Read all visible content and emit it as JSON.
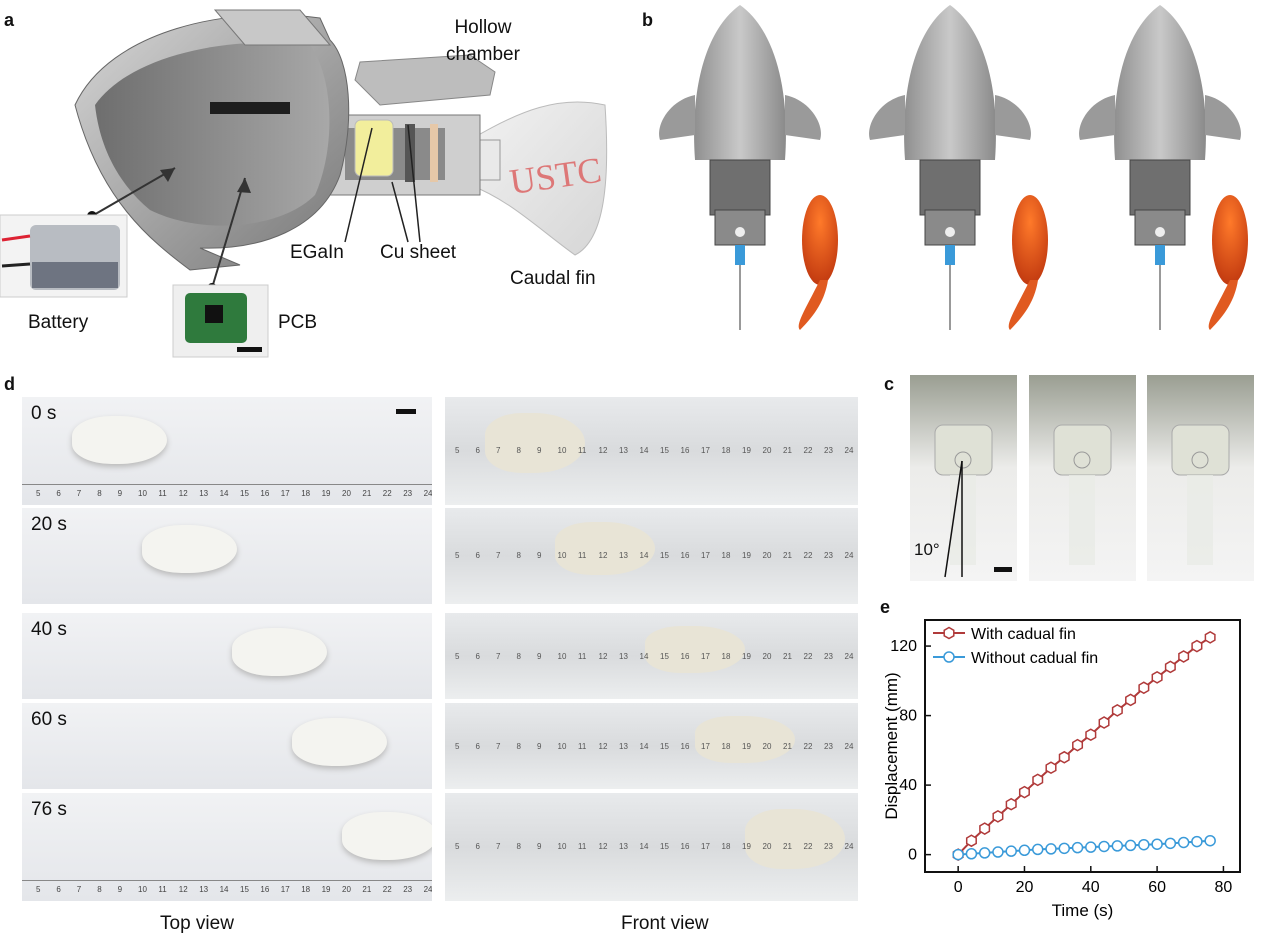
{
  "panel_a": {
    "letter": "a",
    "labels": {
      "hollow_chamber": "Hollow\nchamber",
      "battery": "Battery",
      "pcb": "PCB",
      "egain": "EGaIn",
      "cu_sheet": "Cu sheet",
      "caudal_fin": "Caudal fin",
      "fin_text": "USTC"
    }
  },
  "panel_b": {
    "letter": "b"
  },
  "panel_c": {
    "letter": "c",
    "angle_label": "10°"
  },
  "panel_d": {
    "letter": "d",
    "times": [
      "0 s",
      "20 s",
      "40 s",
      "60 s",
      "76 s"
    ],
    "top_ruler": [
      "5",
      "6",
      "7",
      "8",
      "9",
      "10",
      "11",
      "12",
      "13",
      "14",
      "15",
      "16",
      "17",
      "18",
      "19",
      "20",
      "21",
      "22",
      "23",
      "24"
    ],
    "front_ruler": [
      "5",
      "6",
      "7",
      "8",
      "9",
      "10",
      "11",
      "12",
      "13",
      "14",
      "15",
      "16",
      "17",
      "18",
      "19",
      "20",
      "21",
      "22",
      "23",
      "24"
    ],
    "top_view_label": "Top view",
    "front_view_label": "Front view"
  },
  "chart_data": {
    "type": "line",
    "panel_letter": "e",
    "xlabel": "Time (s)",
    "ylabel": "Displacement (mm)",
    "xlim": [
      -10,
      85
    ],
    "ylim": [
      -10,
      135
    ],
    "xticks": [
      0,
      20,
      40,
      60,
      80
    ],
    "yticks": [
      0,
      40,
      80,
      120
    ],
    "legend_position": "top-left",
    "series": [
      {
        "name": "With cadual fin",
        "color": "#b03a3a",
        "marker": "hexagon",
        "x": [
          0,
          4,
          8,
          12,
          16,
          20,
          24,
          28,
          32,
          36,
          40,
          44,
          48,
          52,
          56,
          60,
          64,
          68,
          72,
          76
        ],
        "y": [
          0,
          8,
          15,
          22,
          29,
          36,
          43,
          50,
          56,
          63,
          69,
          76,
          83,
          89,
          96,
          102,
          108,
          114,
          120,
          125
        ]
      },
      {
        "name": "Without cadual fin",
        "color": "#3a9ad9",
        "marker": "circle",
        "x": [
          0,
          4,
          8,
          12,
          16,
          20,
          24,
          28,
          32,
          36,
          40,
          44,
          48,
          52,
          56,
          60,
          64,
          68,
          72,
          76
        ],
        "y": [
          0,
          0.5,
          1,
          1.5,
          2,
          2.5,
          3,
          3.3,
          3.6,
          4,
          4.3,
          4.7,
          5,
          5.3,
          5.7,
          6,
          6.5,
          7,
          7.5,
          8
        ]
      }
    ]
  }
}
